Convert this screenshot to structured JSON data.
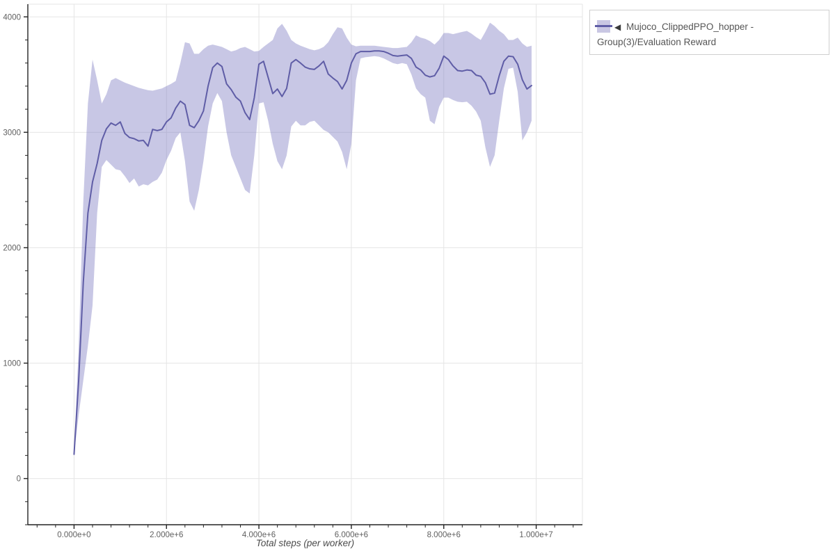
{
  "app": {
    "background": "#ffffff"
  },
  "colors": {
    "line": "#5f5da6",
    "band_fill": "#7c79c0",
    "band_opacity": 0.42,
    "grid": "#e5e5e5",
    "axis_line": "#222222",
    "tick_label": "#5f5f5f",
    "axis_title": "#4a4a4a",
    "legend_border": "#cfcfcf",
    "legend_text": "#555555"
  },
  "legend": {
    "entries": [
      {
        "arrow": "◀",
        "label": "Mujoco_ClippedPPO_hopper - Group(3)/Evaluation Reward",
        "swatch_band_color": "#c9c7e3",
        "swatch_line_color": "#5f5da6"
      }
    ]
  },
  "x_axis": {
    "title": "Total steps (per worker)",
    "tick_labels": [
      "0.000e+0",
      "2.000e+6",
      "4.000e+6",
      "6.000e+6",
      "8.000e+6",
      "1.000e+7"
    ],
    "tick_values_e6": [
      0,
      2,
      4,
      6,
      8,
      10
    ],
    "minor_step_e6": 0.4,
    "range_e6": [
      -1,
      11
    ]
  },
  "y_axis": {
    "title": "",
    "tick_labels": [
      "0",
      "1000",
      "2000",
      "3000",
      "4000"
    ],
    "tick_values": [
      0,
      1000,
      2000,
      3000,
      4000
    ],
    "minor_step": 200,
    "range": [
      -400,
      4110
    ]
  },
  "chart_data": {
    "type": "line",
    "title": "",
    "xlabel": "Total steps (per worker)",
    "ylabel": "",
    "xlim_e6": [
      -1,
      11
    ],
    "ylim": [
      -400,
      4110
    ],
    "grid": true,
    "legend_position": "top-right",
    "band_meaning": "shaded region = spread (min/max over 3 workers) around group mean",
    "series": [
      {
        "name": "Mujoco_ClippedPPO_hopper - Group(3)/Evaluation Reward",
        "x_unit": 1000000,
        "x_start_e6": 0.0,
        "x_step_e6": 0.1,
        "n_points": 100,
        "mean": [
          210,
          850,
          1700,
          2300,
          2570,
          2730,
          2930,
          3030,
          3080,
          3060,
          3090,
          2990,
          2955,
          2945,
          2925,
          2930,
          2880,
          3025,
          3015,
          3025,
          3090,
          3125,
          3210,
          3270,
          3240,
          3060,
          3040,
          3100,
          3185,
          3400,
          3560,
          3600,
          3570,
          3420,
          3370,
          3305,
          3270,
          3170,
          3110,
          3300,
          3590,
          3615,
          3475,
          3335,
          3375,
          3310,
          3380,
          3600,
          3630,
          3600,
          3565,
          3550,
          3545,
          3575,
          3615,
          3505,
          3470,
          3440,
          3375,
          3450,
          3600,
          3680,
          3700,
          3700,
          3700,
          3705,
          3705,
          3700,
          3685,
          3665,
          3660,
          3665,
          3670,
          3640,
          3565,
          3540,
          3495,
          3480,
          3490,
          3555,
          3660,
          3630,
          3575,
          3535,
          3530,
          3540,
          3535,
          3495,
          3485,
          3430,
          3330,
          3340,
          3490,
          3615,
          3660,
          3655,
          3590,
          3455,
          3375,
          3405
        ],
        "lower": [
          210,
          550,
          850,
          1150,
          1500,
          2300,
          2700,
          2760,
          2720,
          2680,
          2670,
          2620,
          2560,
          2600,
          2530,
          2550,
          2540,
          2570,
          2590,
          2650,
          2760,
          2840,
          2950,
          3000,
          2750,
          2400,
          2320,
          2500,
          2750,
          3050,
          3250,
          3340,
          3270,
          3000,
          2800,
          2700,
          2600,
          2500,
          2470,
          2800,
          3250,
          3260,
          3100,
          2900,
          2750,
          2680,
          2800,
          3050,
          3100,
          3060,
          3060,
          3090,
          3100,
          3060,
          3020,
          3000,
          2960,
          2920,
          2830,
          2680,
          2900,
          3450,
          3640,
          3650,
          3655,
          3660,
          3655,
          3640,
          3620,
          3600,
          3590,
          3600,
          3590,
          3500,
          3380,
          3330,
          3300,
          3100,
          3070,
          3220,
          3300,
          3300,
          3280,
          3265,
          3260,
          3265,
          3230,
          3180,
          3100,
          2870,
          2700,
          2800,
          3100,
          3380,
          3550,
          3560,
          3350,
          2930,
          3000,
          3100
        ],
        "upper": [
          210,
          1150,
          2400,
          3250,
          3630,
          3450,
          3250,
          3330,
          3450,
          3470,
          3450,
          3430,
          3415,
          3400,
          3385,
          3375,
          3365,
          3360,
          3370,
          3380,
          3400,
          3420,
          3445,
          3600,
          3780,
          3770,
          3680,
          3680,
          3720,
          3750,
          3760,
          3750,
          3740,
          3720,
          3700,
          3710,
          3730,
          3740,
          3720,
          3700,
          3705,
          3740,
          3770,
          3800,
          3900,
          3940,
          3880,
          3800,
          3770,
          3750,
          3735,
          3720,
          3710,
          3720,
          3740,
          3780,
          3850,
          3910,
          3900,
          3820,
          3760,
          3745,
          3750,
          3750,
          3750,
          3750,
          3745,
          3740,
          3735,
          3730,
          3730,
          3735,
          3740,
          3780,
          3840,
          3820,
          3810,
          3790,
          3760,
          3800,
          3860,
          3860,
          3850,
          3860,
          3870,
          3878,
          3855,
          3825,
          3800,
          3870,
          3950,
          3920,
          3880,
          3850,
          3800,
          3800,
          3820,
          3770,
          3740,
          3750
        ]
      }
    ]
  }
}
